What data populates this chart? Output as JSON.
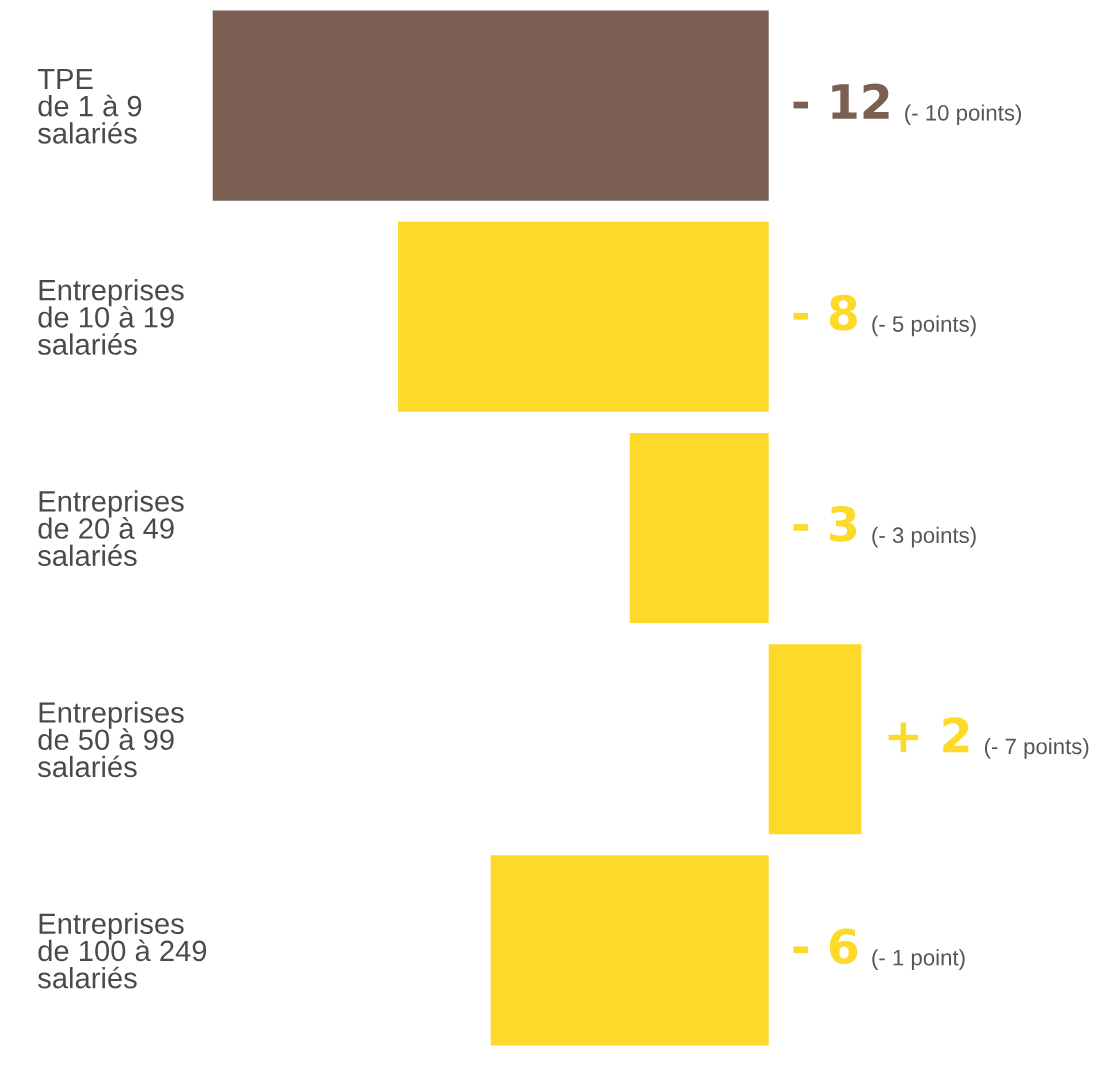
{
  "chart_data": {
    "type": "bar",
    "orientation": "horizontal",
    "categories": [
      "TPE\nde 1 à 9\nsalariés",
      "Entreprises\nde 10 à 19\nsalariés",
      "Entreprises\nde 20 à 49\nsalariés",
      "Entreprises\nde 50 à 99\nsalariés",
      "Entreprises\nde 100 à 249\nsalariés"
    ],
    "values": [
      -12,
      -8,
      -3,
      2,
      -6
    ],
    "colors": [
      "#7a5f52",
      "#fdd92a",
      "#fdd92a",
      "#fdd92a",
      "#fdd92a"
    ],
    "value_labels": [
      "- 12",
      "- 8",
      "- 3",
      "+ 2",
      "- 6"
    ],
    "annotations": [
      "(- 10 points)",
      "(- 5 points)",
      "(- 3 points)",
      "(- 7 points)",
      "(- 1 point)"
    ],
    "grid": false,
    "legend": false
  }
}
